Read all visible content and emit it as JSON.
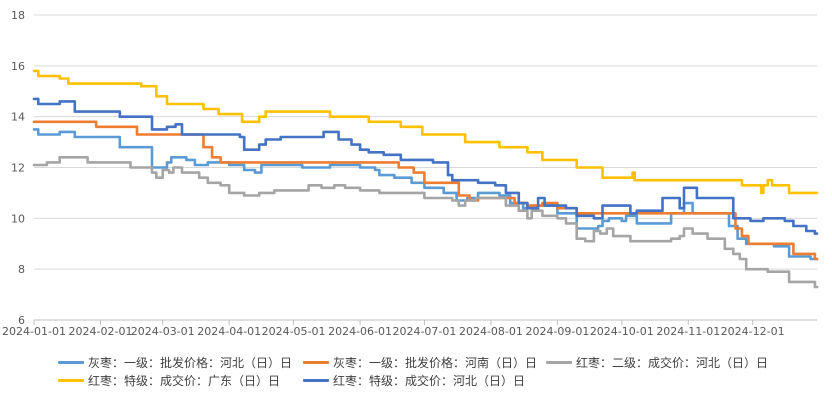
{
  "chart_data": {
    "type": "line",
    "title": "",
    "xlabel": "",
    "ylabel": "",
    "ylim": [
      6,
      18
    ],
    "yticks": [
      6,
      8,
      10,
      12,
      14,
      16,
      18
    ],
    "xlim": [
      "2024-01-01",
      "2024-12-31"
    ],
    "xticks": [
      "2024-01-01",
      "2024-02-01",
      "2024-03-01",
      "2024-04-01",
      "2024-05-01",
      "2024-06-01",
      "2024-07-01",
      "2024-08-01",
      "2024-09-01",
      "2024-10-01",
      "2024-11-01",
      "2024-12-01"
    ],
    "grid": "horizontal",
    "legend_position": "bottom",
    "series": [
      {
        "name": "灰枣：一级：批发价格：河北（日）日",
        "color": "#5B9BD5",
        "points": [
          [
            "2024-01-01",
            13.5
          ],
          [
            "2024-01-03",
            13.3
          ],
          [
            "2024-01-13",
            13.4
          ],
          [
            "2024-01-20",
            13.2
          ],
          [
            "2024-02-10",
            12.8
          ],
          [
            "2024-02-25",
            12.0
          ],
          [
            "2024-03-03",
            12.2
          ],
          [
            "2024-03-05",
            12.4
          ],
          [
            "2024-03-12",
            12.3
          ],
          [
            "2024-03-16",
            12.1
          ],
          [
            "2024-03-22",
            12.2
          ],
          [
            "2024-04-01",
            12.1
          ],
          [
            "2024-04-08",
            11.9
          ],
          [
            "2024-04-13",
            11.8
          ],
          [
            "2024-04-16",
            12.1
          ],
          [
            "2024-05-05",
            12.0
          ],
          [
            "2024-05-18",
            12.1
          ],
          [
            "2024-06-01",
            12.0
          ],
          [
            "2024-06-08",
            11.9
          ],
          [
            "2024-06-10",
            11.7
          ],
          [
            "2024-06-17",
            11.6
          ],
          [
            "2024-06-25",
            11.4
          ],
          [
            "2024-07-01",
            11.2
          ],
          [
            "2024-07-10",
            11.0
          ],
          [
            "2024-07-16",
            10.7
          ],
          [
            "2024-07-21",
            10.8
          ],
          [
            "2024-07-26",
            11.0
          ],
          [
            "2024-08-05",
            10.9
          ],
          [
            "2024-08-10",
            10.6
          ],
          [
            "2024-08-16",
            10.4
          ],
          [
            "2024-08-20",
            10.5
          ],
          [
            "2024-09-01",
            10.2
          ],
          [
            "2024-09-10",
            9.6
          ],
          [
            "2024-09-20",
            9.7
          ],
          [
            "2024-09-22",
            9.9
          ],
          [
            "2024-09-25",
            10.0
          ],
          [
            "2024-10-01",
            9.9
          ],
          [
            "2024-10-03",
            10.1
          ],
          [
            "2024-10-08",
            9.8
          ],
          [
            "2024-10-24",
            10.2
          ],
          [
            "2024-10-30",
            10.6
          ],
          [
            "2024-11-03",
            10.2
          ],
          [
            "2024-11-15",
            10.2
          ],
          [
            "2024-11-20",
            9.7
          ],
          [
            "2024-11-24",
            9.2
          ],
          [
            "2024-11-28",
            9.0
          ],
          [
            "2024-12-11",
            8.9
          ],
          [
            "2024-12-18",
            8.5
          ],
          [
            "2024-12-28",
            8.4
          ]
        ]
      },
      {
        "name": "灰枣：一级：批发价格：河南（日）日",
        "color": "#ED7D31",
        "points": [
          [
            "2024-01-01",
            13.8
          ],
          [
            "2024-01-28",
            13.8
          ],
          [
            "2024-01-30",
            13.6
          ],
          [
            "2024-02-15",
            13.6
          ],
          [
            "2024-02-18",
            13.3
          ],
          [
            "2024-03-16",
            13.3
          ],
          [
            "2024-03-20",
            12.8
          ],
          [
            "2024-03-24",
            12.4
          ],
          [
            "2024-03-28",
            12.2
          ],
          [
            "2024-06-15",
            12.2
          ],
          [
            "2024-06-19",
            12.0
          ],
          [
            "2024-06-26",
            11.8
          ],
          [
            "2024-07-01",
            11.4
          ],
          [
            "2024-07-15",
            11.4
          ],
          [
            "2024-07-17",
            10.9
          ],
          [
            "2024-07-22",
            10.7
          ],
          [
            "2024-07-26",
            10.8
          ],
          [
            "2024-08-08",
            10.8
          ],
          [
            "2024-08-12",
            10.6
          ],
          [
            "2024-08-18",
            10.5
          ],
          [
            "2024-08-25",
            10.6
          ],
          [
            "2024-09-01",
            10.4
          ],
          [
            "2024-09-10",
            10.2
          ],
          [
            "2024-09-20",
            10.2
          ],
          [
            "2024-10-01",
            10.2
          ],
          [
            "2024-11-21",
            10.2
          ],
          [
            "2024-11-23",
            9.6
          ],
          [
            "2024-11-26",
            9.3
          ],
          [
            "2024-11-29",
            9.0
          ],
          [
            "2024-12-18",
            9.0
          ],
          [
            "2024-12-20",
            8.6
          ],
          [
            "2024-12-28",
            8.6
          ],
          [
            "2024-12-30",
            8.4
          ]
        ]
      },
      {
        "name": "红枣：二级：成交价：河北（日）日",
        "color": "#A5A5A5",
        "points": [
          [
            "2024-01-01",
            12.1
          ],
          [
            "2024-01-07",
            12.2
          ],
          [
            "2024-01-13",
            12.4
          ],
          [
            "2024-01-26",
            12.2
          ],
          [
            "2024-02-15",
            12.0
          ],
          [
            "2024-02-25",
            11.8
          ],
          [
            "2024-02-27",
            11.6
          ],
          [
            "2024-03-01",
            11.9
          ],
          [
            "2024-03-04",
            11.8
          ],
          [
            "2024-03-06",
            12.0
          ],
          [
            "2024-03-10",
            11.8
          ],
          [
            "2024-03-18",
            11.6
          ],
          [
            "2024-03-22",
            11.4
          ],
          [
            "2024-03-28",
            11.3
          ],
          [
            "2024-04-01",
            11.0
          ],
          [
            "2024-04-08",
            10.9
          ],
          [
            "2024-04-15",
            11.0
          ],
          [
            "2024-04-22",
            11.1
          ],
          [
            "2024-05-05",
            11.1
          ],
          [
            "2024-05-08",
            11.3
          ],
          [
            "2024-05-14",
            11.2
          ],
          [
            "2024-05-20",
            11.3
          ],
          [
            "2024-05-25",
            11.2
          ],
          [
            "2024-06-01",
            11.1
          ],
          [
            "2024-06-10",
            11.0
          ],
          [
            "2024-06-28",
            11.0
          ],
          [
            "2024-07-01",
            10.8
          ],
          [
            "2024-07-14",
            10.7
          ],
          [
            "2024-07-17",
            10.5
          ],
          [
            "2024-07-20",
            10.7
          ],
          [
            "2024-07-25",
            10.8
          ],
          [
            "2024-08-08",
            10.5
          ],
          [
            "2024-08-14",
            10.3
          ],
          [
            "2024-08-18",
            10.0
          ],
          [
            "2024-08-20",
            10.3
          ],
          [
            "2024-08-25",
            10.1
          ],
          [
            "2024-09-01",
            10.0
          ],
          [
            "2024-09-05",
            9.8
          ],
          [
            "2024-09-10",
            9.2
          ],
          [
            "2024-09-14",
            9.1
          ],
          [
            "2024-09-18",
            9.5
          ],
          [
            "2024-09-21",
            9.4
          ],
          [
            "2024-09-24",
            9.6
          ],
          [
            "2024-09-27",
            9.3
          ],
          [
            "2024-10-01",
            9.3
          ],
          [
            "2024-10-05",
            9.1
          ],
          [
            "2024-10-24",
            9.2
          ],
          [
            "2024-10-28",
            9.3
          ],
          [
            "2024-10-30",
            9.6
          ],
          [
            "2024-11-03",
            9.4
          ],
          [
            "2024-11-10",
            9.2
          ],
          [
            "2024-11-18",
            8.8
          ],
          [
            "2024-11-22",
            8.6
          ],
          [
            "2024-11-25",
            8.4
          ],
          [
            "2024-11-28",
            8.0
          ],
          [
            "2024-12-08",
            7.9
          ],
          [
            "2024-12-18",
            7.5
          ],
          [
            "2024-12-28",
            7.5
          ],
          [
            "2024-12-30",
            7.3
          ]
        ]
      },
      {
        "name": "红枣：特级：成交价：广东（日）日",
        "color": "#FFC000",
        "points": [
          [
            "2024-01-01",
            15.8
          ],
          [
            "2024-01-03",
            15.6
          ],
          [
            "2024-01-13",
            15.5
          ],
          [
            "2024-01-17",
            15.3
          ],
          [
            "2024-02-20",
            15.2
          ],
          [
            "2024-02-27",
            14.8
          ],
          [
            "2024-03-03",
            14.5
          ],
          [
            "2024-03-20",
            14.3
          ],
          [
            "2024-03-27",
            14.1
          ],
          [
            "2024-04-07",
            13.8
          ],
          [
            "2024-04-15",
            14.0
          ],
          [
            "2024-04-18",
            14.2
          ],
          [
            "2024-05-18",
            14.0
          ],
          [
            "2024-06-05",
            13.8
          ],
          [
            "2024-06-20",
            13.6
          ],
          [
            "2024-06-30",
            13.3
          ],
          [
            "2024-07-20",
            13.0
          ],
          [
            "2024-08-05",
            12.8
          ],
          [
            "2024-08-18",
            12.6
          ],
          [
            "2024-08-25",
            12.3
          ],
          [
            "2024-09-08",
            12.3
          ],
          [
            "2024-09-10",
            12.0
          ],
          [
            "2024-09-18",
            12.0
          ],
          [
            "2024-09-22",
            11.6
          ],
          [
            "2024-10-05",
            11.6
          ],
          [
            "2024-10-06",
            11.8
          ],
          [
            "2024-10-07",
            11.5
          ],
          [
            "2024-11-25",
            11.5
          ],
          [
            "2024-11-26",
            11.3
          ],
          [
            "2024-12-04",
            11.3
          ],
          [
            "2024-12-05",
            11.0
          ],
          [
            "2024-12-06",
            11.3
          ],
          [
            "2024-12-08",
            11.5
          ],
          [
            "2024-12-10",
            11.3
          ],
          [
            "2024-12-18",
            11.0
          ],
          [
            "2024-12-30",
            11.0
          ]
        ]
      },
      {
        "name": "红枣：特级：成交价：河北（日）日",
        "color": "#4472C4",
        "points": [
          [
            "2024-01-01",
            14.7
          ],
          [
            "2024-01-03",
            14.5
          ],
          [
            "2024-01-13",
            14.6
          ],
          [
            "2024-01-20",
            14.2
          ],
          [
            "2024-02-10",
            14.0
          ],
          [
            "2024-02-25",
            13.5
          ],
          [
            "2024-03-03",
            13.6
          ],
          [
            "2024-03-07",
            13.7
          ],
          [
            "2024-03-10",
            13.3
          ],
          [
            "2024-04-06",
            13.2
          ],
          [
            "2024-04-08",
            12.7
          ],
          [
            "2024-04-15",
            12.9
          ],
          [
            "2024-04-18",
            13.1
          ],
          [
            "2024-04-25",
            13.2
          ],
          [
            "2024-05-15",
            13.4
          ],
          [
            "2024-05-22",
            13.1
          ],
          [
            "2024-05-28",
            12.9
          ],
          [
            "2024-06-01",
            12.7
          ],
          [
            "2024-06-05",
            12.6
          ],
          [
            "2024-06-12",
            12.5
          ],
          [
            "2024-06-20",
            12.3
          ],
          [
            "2024-07-05",
            12.2
          ],
          [
            "2024-07-12",
            11.7
          ],
          [
            "2024-07-14",
            11.5
          ],
          [
            "2024-07-26",
            11.4
          ],
          [
            "2024-08-03",
            11.3
          ],
          [
            "2024-08-08",
            11.0
          ],
          [
            "2024-08-14",
            10.6
          ],
          [
            "2024-08-18",
            10.4
          ],
          [
            "2024-08-23",
            10.8
          ],
          [
            "2024-08-26",
            10.5
          ],
          [
            "2024-09-05",
            10.4
          ],
          [
            "2024-09-10",
            10.1
          ],
          [
            "2024-09-18",
            10.0
          ],
          [
            "2024-09-22",
            10.5
          ],
          [
            "2024-10-01",
            10.5
          ],
          [
            "2024-10-05",
            10.2
          ],
          [
            "2024-10-08",
            10.3
          ],
          [
            "2024-10-20",
            10.8
          ],
          [
            "2024-10-28",
            10.4
          ],
          [
            "2024-10-30",
            11.2
          ],
          [
            "2024-11-05",
            10.8
          ],
          [
            "2024-11-15",
            10.8
          ],
          [
            "2024-11-22",
            10.0
          ],
          [
            "2024-11-30",
            9.9
          ],
          [
            "2024-12-06",
            10.0
          ],
          [
            "2024-12-16",
            9.9
          ],
          [
            "2024-12-20",
            9.7
          ],
          [
            "2024-12-26",
            9.5
          ],
          [
            "2024-12-30",
            9.4
          ]
        ]
      }
    ]
  },
  "legend": {
    "row1": [
      {
        "label": "灰枣：一级：批发价格：河北（日）日",
        "color": "#5B9BD5"
      },
      {
        "label": "灰枣：一级：批发价格：河南（日）日",
        "color": "#ED7D31"
      },
      {
        "label": "红枣：二级：成交价：河北（日）日",
        "color": "#A5A5A5"
      }
    ],
    "row2": [
      {
        "label": "红枣：特级：成交价：广东（日）日",
        "color": "#FFC000"
      },
      {
        "label": "红枣：特级：成交价：河北（日）日",
        "color": "#4472C4"
      }
    ]
  }
}
